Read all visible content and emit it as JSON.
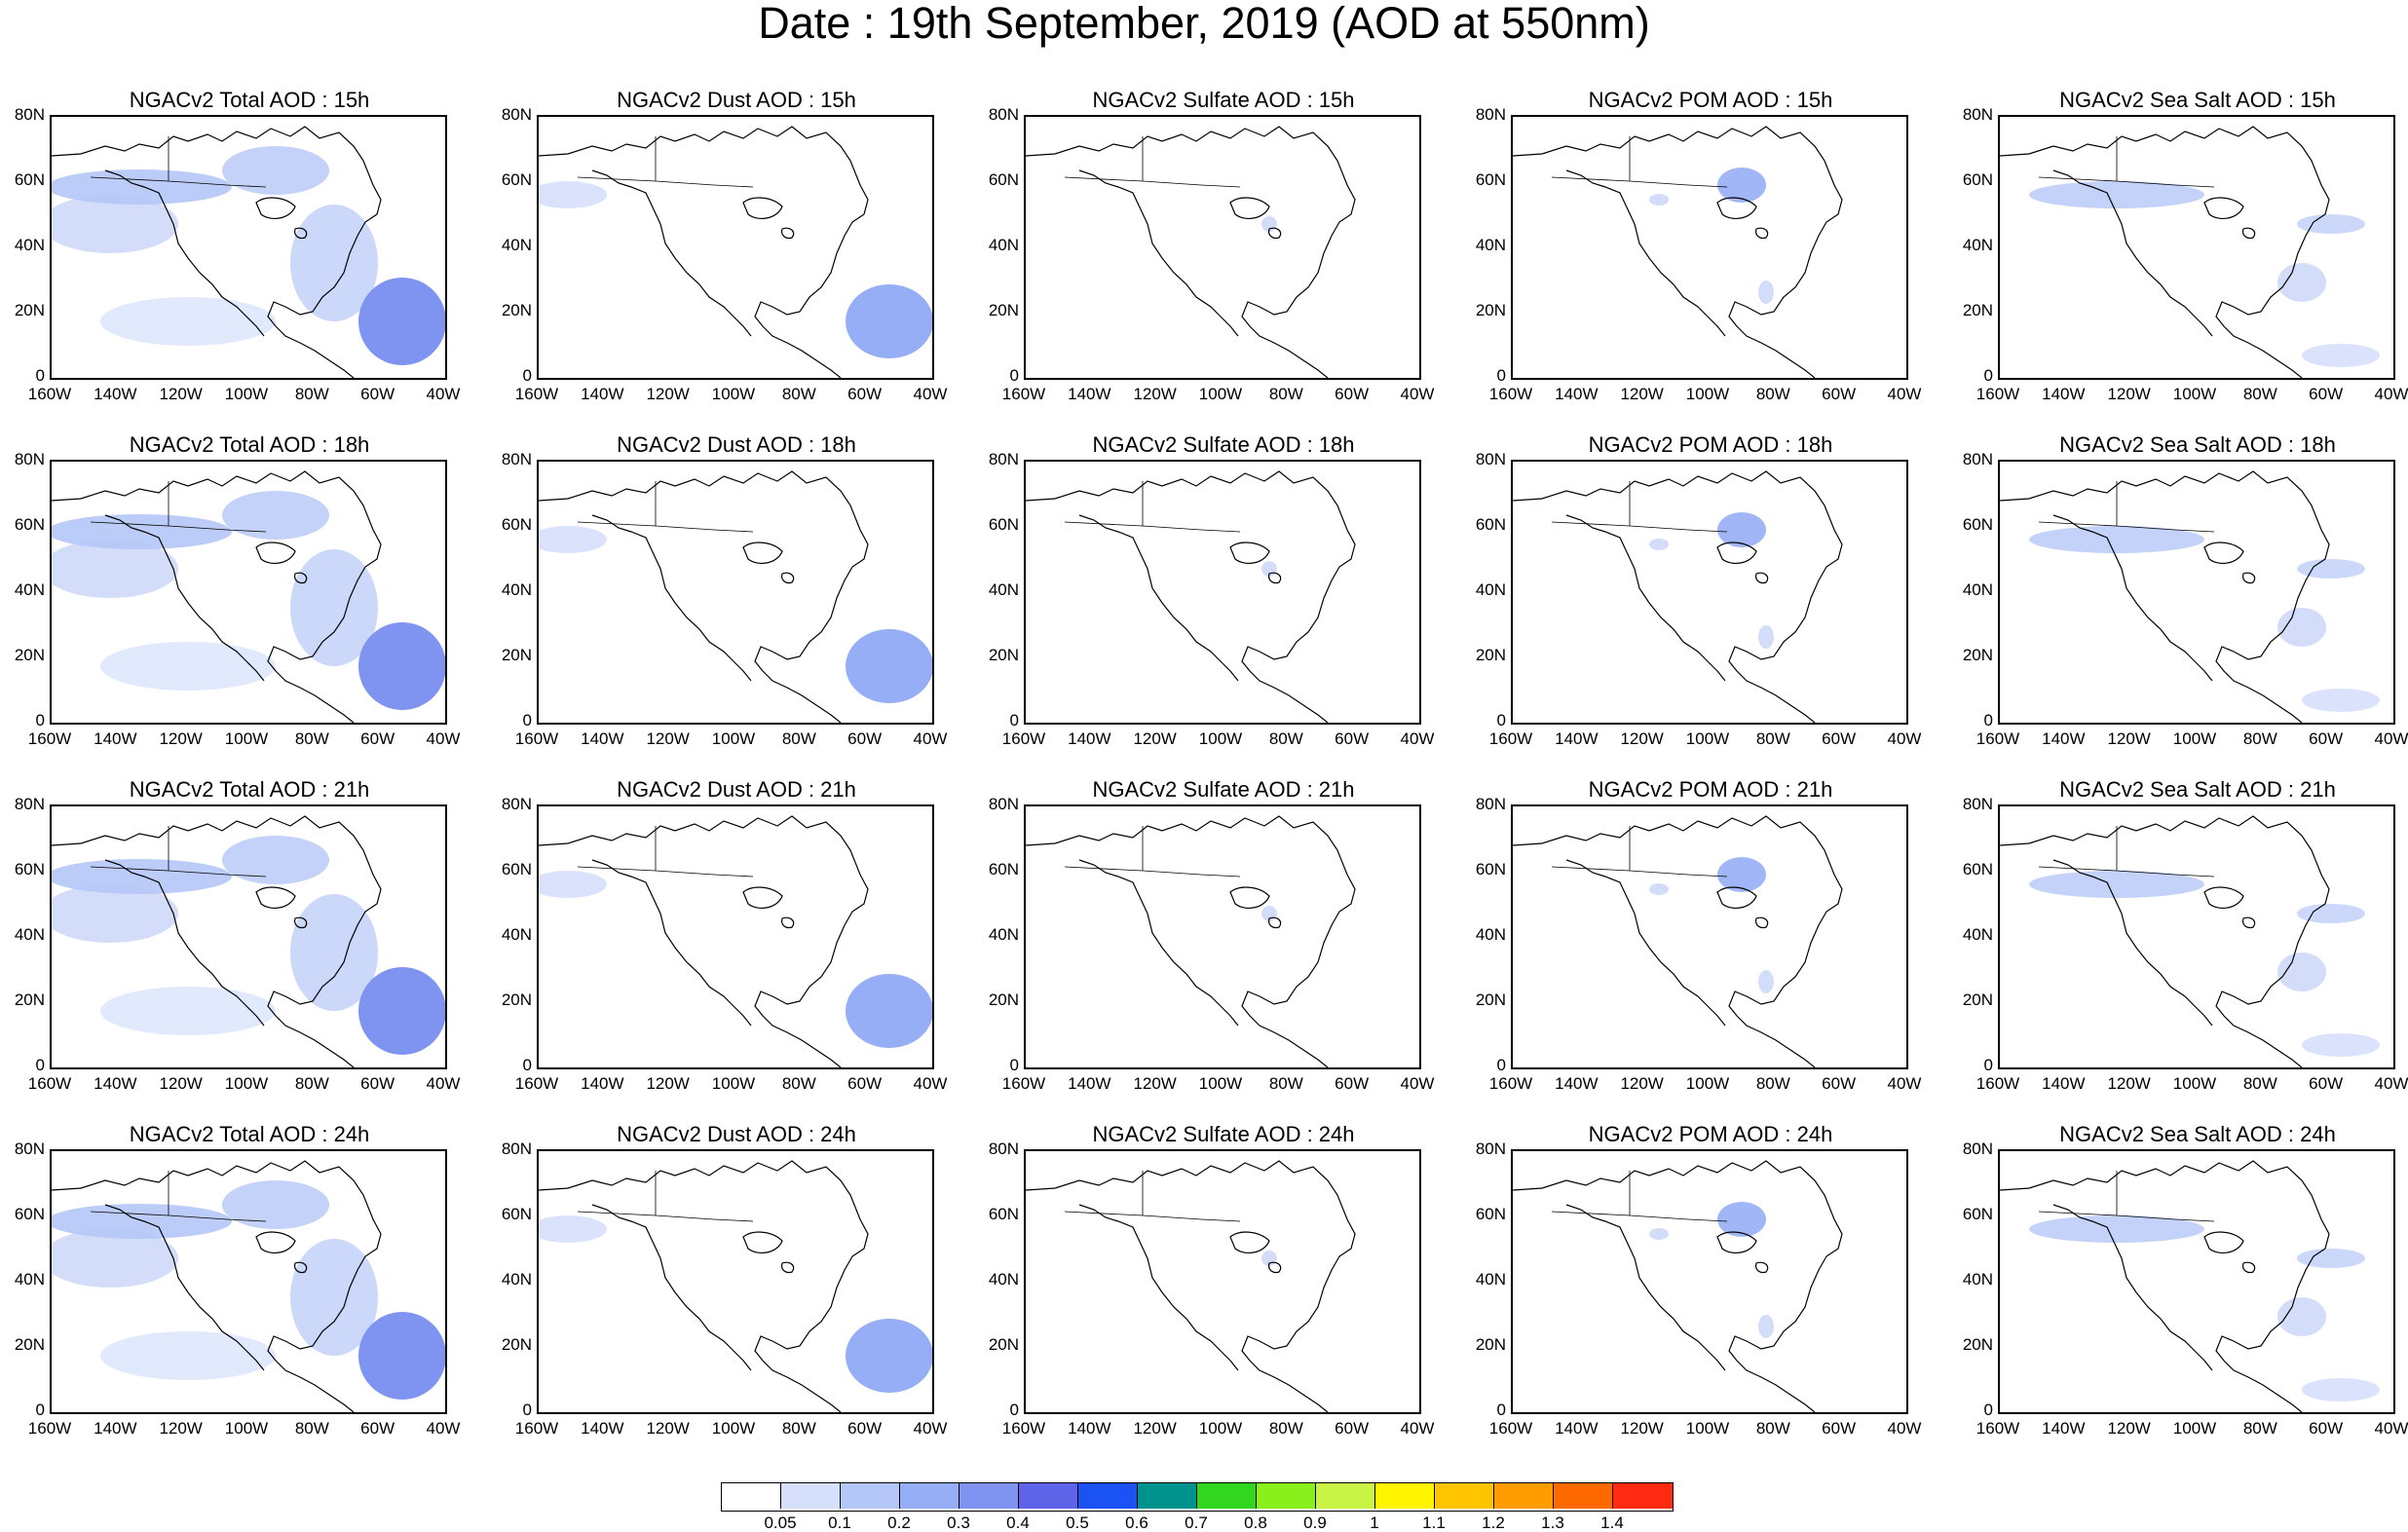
{
  "title": "Date : 19th September, 2019 (AOD at 550nm)",
  "y_ticks": [
    "80N",
    "60N",
    "40N",
    "20N",
    "0"
  ],
  "x_ticks": [
    "160W",
    "140W",
    "120W",
    "100W",
    "80W",
    "60W",
    "40W"
  ],
  "panels": [
    {
      "title": "NGACv2 Total AOD : 15h",
      "field": "total"
    },
    {
      "title": "NGACv2 Dust AOD : 15h",
      "field": "dust"
    },
    {
      "title": "NGACv2 Sulfate AOD : 15h",
      "field": "sulfate"
    },
    {
      "title": "NGACv2 POM AOD : 15h",
      "field": "pom"
    },
    {
      "title": "NGACv2 Sea Salt AOD : 15h",
      "field": "seasalt"
    },
    {
      "title": "NGACv2 Total AOD : 18h",
      "field": "total"
    },
    {
      "title": "NGACv2 Dust AOD : 18h",
      "field": "dust"
    },
    {
      "title": "NGACv2 Sulfate AOD : 18h",
      "field": "sulfate"
    },
    {
      "title": "NGACv2 POM AOD : 18h",
      "field": "pom"
    },
    {
      "title": "NGACv2 Sea Salt AOD : 18h",
      "field": "seasalt"
    },
    {
      "title": "NGACv2 Total AOD : 21h",
      "field": "total"
    },
    {
      "title": "NGACv2 Dust AOD : 21h",
      "field": "dust"
    },
    {
      "title": "NGACv2 Sulfate AOD : 21h",
      "field": "sulfate"
    },
    {
      "title": "NGACv2 POM AOD : 21h",
      "field": "pom"
    },
    {
      "title": "NGACv2 Sea Salt AOD : 21h",
      "field": "seasalt"
    },
    {
      "title": "NGACv2 Total AOD : 24h",
      "field": "total"
    },
    {
      "title": "NGACv2 Dust AOD : 24h",
      "field": "dust"
    },
    {
      "title": "NGACv2 Sulfate AOD : 24h",
      "field": "sulfate"
    },
    {
      "title": "NGACv2 POM AOD : 24h",
      "field": "pom"
    },
    {
      "title": "NGACv2 Sea Salt  AOD : 24h",
      "field": "seasalt"
    }
  ],
  "legend": {
    "labels": [
      "0.05",
      "0.1",
      "0.2",
      "0.3",
      "0.4",
      "0.5",
      "0.6",
      "0.7",
      "0.8",
      "0.9",
      "1",
      "1.1",
      "1.2",
      "1.3",
      "1.4"
    ],
    "colors": [
      "#ffffff",
      "#d6e0fb",
      "#b5c7f7",
      "#96aef5",
      "#7f93f0",
      "#5e63e8",
      "#1b52f3",
      "#00928c",
      "#33d61f",
      "#8af01b",
      "#c8f545",
      "#fff500",
      "#ffc400",
      "#ff9d00",
      "#ff6a00",
      "#ff2a10"
    ]
  }
}
